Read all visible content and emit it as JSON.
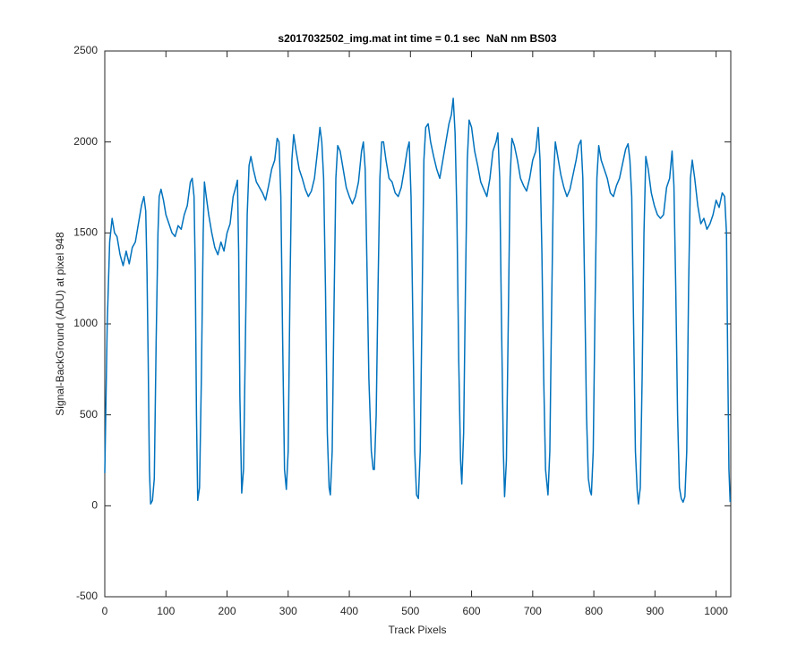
{
  "chart_data": {
    "type": "line",
    "title": "s2017032502_img.mat int time = 0.1 sec  NaN nm BS03",
    "x_label": "Track Pixels",
    "y_label": "Signal-BackGround (ADU) at pixel 948",
    "xlim": [
      0,
      1024
    ],
    "ylim": [
      -500,
      2500
    ],
    "xticks": [
      0,
      100,
      200,
      300,
      400,
      500,
      600,
      700,
      800,
      900,
      1000
    ],
    "yticks": [
      -500,
      0,
      500,
      1000,
      1500,
      2000,
      2500
    ],
    "grid": false,
    "x": [
      0,
      4,
      8,
      12,
      16,
      20,
      25,
      30,
      35,
      40,
      45,
      50,
      55,
      60,
      64,
      67,
      69,
      71,
      73,
      75,
      78,
      81,
      84,
      87,
      89,
      92,
      96,
      100,
      105,
      110,
      115,
      120,
      125,
      130,
      135,
      140,
      143,
      146,
      148,
      150,
      152,
      155,
      158,
      161,
      163,
      166,
      170,
      175,
      180,
      185,
      190,
      195,
      200,
      205,
      210,
      215,
      217,
      219,
      221,
      224,
      227,
      230,
      233,
      236,
      239,
      243,
      248,
      253,
      258,
      263,
      268,
      273,
      278,
      282,
      285,
      288,
      291,
      294,
      297,
      300,
      303,
      306,
      309,
      313,
      318,
      323,
      328,
      333,
      338,
      343,
      348,
      352,
      355,
      358,
      361,
      364,
      367,
      369,
      372,
      375,
      378,
      381,
      385,
      390,
      395,
      400,
      405,
      410,
      415,
      420,
      423,
      426,
      429,
      432,
      436,
      439,
      441,
      444,
      447,
      450,
      453,
      456,
      460,
      465,
      470,
      475,
      480,
      485,
      490,
      495,
      498,
      501,
      504,
      507,
      510,
      513,
      516,
      519,
      522,
      525,
      529,
      533,
      538,
      543,
      548,
      553,
      558,
      563,
      567,
      570,
      573,
      576,
      579,
      582,
      584,
      587,
      590,
      593,
      596,
      600,
      605,
      610,
      615,
      620,
      625,
      630,
      635,
      640,
      643,
      646,
      649,
      652,
      654,
      657,
      660,
      663,
      666,
      670,
      675,
      680,
      685,
      690,
      695,
      700,
      705,
      709,
      712,
      715,
      718,
      721,
      725,
      728,
      731,
      734,
      737,
      741,
      746,
      751,
      756,
      761,
      766,
      771,
      775,
      779,
      782,
      785,
      788,
      791,
      794,
      796,
      799,
      802,
      805,
      808,
      812,
      817,
      822,
      827,
      832,
      837,
      842,
      847,
      852,
      856,
      859,
      862,
      865,
      868,
      871,
      873,
      876,
      879,
      882,
      885,
      889,
      894,
      899,
      904,
      909,
      914,
      919,
      924,
      928,
      931,
      934,
      937,
      940,
      943,
      946,
      949,
      952,
      955,
      958,
      961,
      965,
      970,
      975,
      980,
      985,
      990,
      995,
      1000,
      1005,
      1010,
      1014,
      1017,
      1019,
      1021,
      1023
    ],
    "series": [
      {
        "color": "#0072bd",
        "values": [
          180,
          1000,
          1450,
          1580,
          1500,
          1480,
          1380,
          1320,
          1400,
          1330,
          1420,
          1450,
          1550,
          1650,
          1700,
          1620,
          1300,
          800,
          200,
          10,
          30,
          150,
          900,
          1500,
          1700,
          1740,
          1680,
          1600,
          1550,
          1500,
          1480,
          1540,
          1520,
          1600,
          1650,
          1780,
          1800,
          1700,
          1300,
          500,
          30,
          100,
          700,
          1500,
          1780,
          1700,
          1600,
          1500,
          1420,
          1380,
          1450,
          1400,
          1500,
          1550,
          1700,
          1760,
          1790,
          1400,
          600,
          70,
          200,
          900,
          1600,
          1870,
          1920,
          1850,
          1780,
          1750,
          1720,
          1680,
          1760,
          1850,
          1900,
          2020,
          2000,
          1700,
          900,
          200,
          90,
          300,
          1200,
          1900,
          2040,
          1950,
          1850,
          1800,
          1740,
          1700,
          1730,
          1800,
          1950,
          2080,
          2000,
          1800,
          1200,
          400,
          100,
          60,
          300,
          1100,
          1800,
          1980,
          1950,
          1850,
          1750,
          1700,
          1660,
          1700,
          1780,
          1950,
          2000,
          1850,
          1300,
          700,
          300,
          200,
          200,
          500,
          1200,
          1800,
          2000,
          2000,
          1900,
          1800,
          1780,
          1720,
          1700,
          1750,
          1850,
          1960,
          2000,
          1700,
          1000,
          300,
          60,
          40,
          300,
          1100,
          1900,
          2080,
          2100,
          2000,
          1920,
          1850,
          1800,
          1900,
          2000,
          2100,
          2150,
          2240,
          2050,
          1600,
          800,
          250,
          120,
          400,
          1200,
          1900,
          2120,
          2080,
          1950,
          1870,
          1780,
          1740,
          1700,
          1800,
          1950,
          2000,
          2050,
          1800,
          1000,
          300,
          50,
          250,
          1000,
          1800,
          2020,
          1980,
          1900,
          1800,
          1760,
          1730,
          1800,
          1900,
          1950,
          2080,
          1900,
          1400,
          700,
          200,
          60,
          300,
          1100,
          1800,
          2000,
          1920,
          1820,
          1750,
          1700,
          1740,
          1820,
          1900,
          1980,
          2010,
          1800,
          1200,
          500,
          150,
          80,
          60,
          300,
          1100,
          1800,
          1980,
          1900,
          1850,
          1800,
          1720,
          1700,
          1760,
          1800,
          1880,
          1960,
          1990,
          1900,
          1700,
          1000,
          300,
          80,
          10,
          100,
          700,
          1500,
          1920,
          1850,
          1720,
          1650,
          1600,
          1580,
          1600,
          1750,
          1800,
          1950,
          1760,
          1200,
          500,
          100,
          40,
          20,
          50,
          300,
          1200,
          1800,
          1900,
          1800,
          1650,
          1550,
          1580,
          1520,
          1550,
          1600,
          1680,
          1640,
          1720,
          1700,
          1500,
          800,
          200,
          20
        ]
      }
    ]
  }
}
